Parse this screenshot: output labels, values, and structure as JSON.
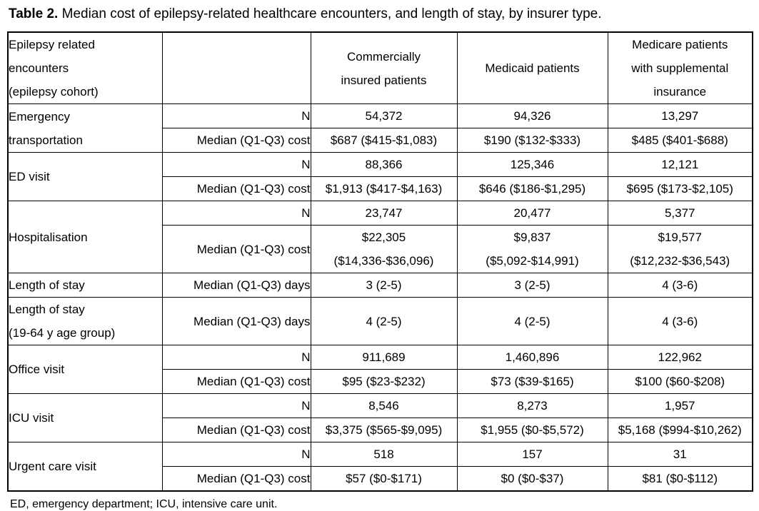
{
  "page_title": {
    "prefix": "Table 2.",
    "rest": " Median cost of epilepsy-related healthcare encounters, and length of stay, by insurer type."
  },
  "columns": {
    "encounters": "Epilepsy related\nencounters\n(epilepsy cohort)",
    "metric": "",
    "commercial": "Commercially\ninsured patients",
    "medicaid": "Medicaid patients",
    "medicare": "Medicare patients\nwith supplemental\ninsurance"
  },
  "metrics": {
    "n": "N",
    "cost": "Median (Q1-Q3) cost",
    "days": "Median (Q1-Q3) days"
  },
  "rows": {
    "emergency_transportation": {
      "label": "Emergency\ntransportation",
      "n": {
        "commercial": "54,372",
        "medicaid": "94,326",
        "medicare": "13,297"
      },
      "cost": {
        "commercial": "$687 ($415-$1,083)",
        "medicaid": "$190 ($132-$333)",
        "medicare": "$485 ($401-$688)"
      }
    },
    "ed_visit": {
      "label": "ED visit",
      "n": {
        "commercial": "88,366",
        "medicaid": "125,346",
        "medicare": "12,121"
      },
      "cost": {
        "commercial": "$1,913 ($417-$4,163)",
        "medicaid": "$646 ($186-$1,295)",
        "medicare": "$695 ($173-$2,105)"
      }
    },
    "hospitalisation": {
      "label": "Hospitalisation",
      "n": {
        "commercial": "23,747",
        "medicaid": "20,477",
        "medicare": "5,377"
      },
      "cost": {
        "commercial": "$22,305\n($14,336-$36,096)",
        "medicaid": "$9,837\n($5,092-$14,991)",
        "medicare": "$19,577\n($12,232-$36,543)"
      }
    },
    "length_of_stay": {
      "label": "Length of stay",
      "days": {
        "commercial": "3 (2-5)",
        "medicaid": "3 (2-5)",
        "medicare": "4 (3-6)"
      }
    },
    "length_of_stay_19_64": {
      "label": "Length of stay\n(19-64 y age group)",
      "days": {
        "commercial": "4 (2-5)",
        "medicaid": "4 (2-5)",
        "medicare": "4 (3-6)"
      }
    },
    "office_visit": {
      "label": "Office visit",
      "n": {
        "commercial": "911,689",
        "medicaid": "1,460,896",
        "medicare": "122,962"
      },
      "cost": {
        "commercial": "$95 ($23-$232)",
        "medicaid": "$73 ($39-$165)",
        "medicare": "$100 ($60-$208)"
      }
    },
    "icu_visit": {
      "label": "ICU visit",
      "n": {
        "commercial": "8,546",
        "medicaid": "8,273",
        "medicare": "1,957"
      },
      "cost": {
        "commercial": "$3,375 ($565-$9,095)",
        "medicaid": "$1,955 ($0-$5,572)",
        "medicare": "$5,168 ($994-$10,262)"
      }
    },
    "urgent_care_visit": {
      "label": "Urgent care visit",
      "n": {
        "commercial": "518",
        "medicaid": "157",
        "medicare": "31"
      },
      "cost": {
        "commercial": "$57 ($0-$171)",
        "medicaid": "$0 ($0-$37)",
        "medicare": "$81 ($0-$112)"
      }
    }
  },
  "footnote": "ED, emergency department; ICU, intensive care unit."
}
